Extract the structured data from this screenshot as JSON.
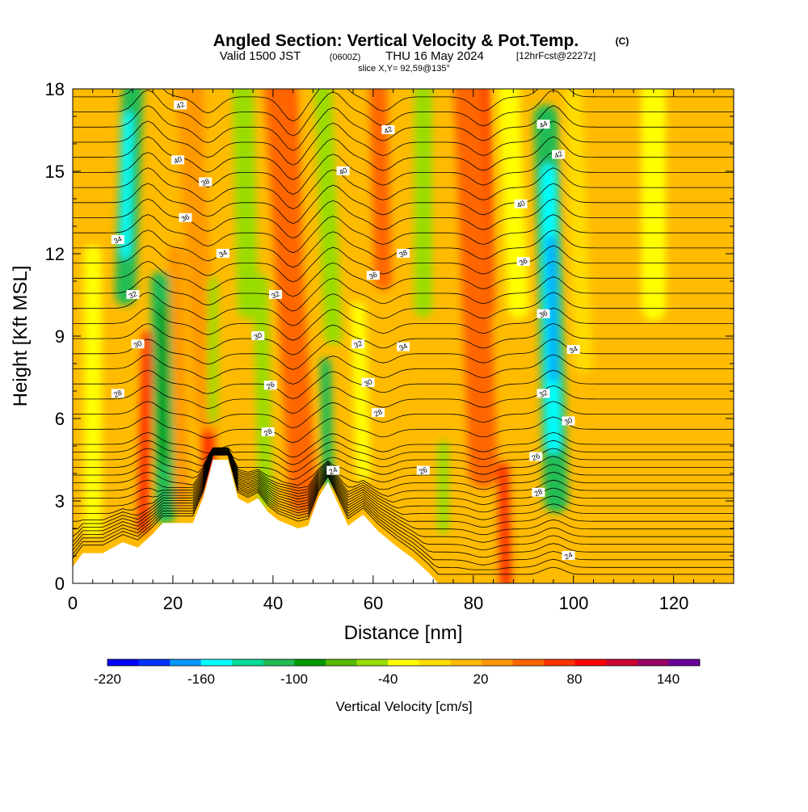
{
  "header": {
    "title": "Angled Section: Vertical Velocity & Pot.Temp.",
    "copyright": "(C)",
    "valid_prefix": "Valid 1500 JST",
    "valid_zulu": "(0600Z)",
    "valid_date": "THU 16 May 2024",
    "forecast": "[12hrFcst@2227z]",
    "slice": "slice X,Y= 92,59@135°"
  },
  "axes": {
    "xlabel": "Distance [nm]",
    "ylabel": "Height [Kft MSL]",
    "xlim": [
      0,
      132
    ],
    "ylim": [
      0,
      18
    ],
    "xticks": [
      "0",
      "20",
      "40",
      "60",
      "80",
      "100",
      "120"
    ],
    "yticks": [
      "0",
      "3",
      "6",
      "9",
      "12",
      "15",
      "18"
    ]
  },
  "colorbar": {
    "label": "Vertical Velocity [cm/s]",
    "ticks": [
      "-220",
      "-160",
      "-100",
      "-40",
      "20",
      "80",
      "140"
    ],
    "colors": [
      "#0000ff",
      "#0033ff",
      "#0099ff",
      "#00ffff",
      "#00dd99",
      "#22bb55",
      "#009900",
      "#55bb00",
      "#99dd00",
      "#ffff00",
      "#ffdd00",
      "#ffbb00",
      "#ff9900",
      "#ff6600",
      "#ff3300",
      "#ff0000",
      "#cc0033",
      "#990066",
      "#660099"
    ]
  },
  "chart_data": {
    "type": "heatmap",
    "field": "vertical velocity (filled) with potential temperature contours",
    "x": "distance nm",
    "y": "height kft MSL",
    "updrafts_nm": [
      15,
      27,
      44,
      62,
      82,
      88
    ],
    "downdrafts_nm": [
      11,
      18,
      38,
      51,
      96
    ],
    "terrain": [
      [
        0,
        0.6
      ],
      [
        2,
        1.1
      ],
      [
        6,
        1.1
      ],
      [
        8,
        1.3
      ],
      [
        10,
        1.5
      ],
      [
        13,
        1.3
      ],
      [
        16,
        1.8
      ],
      [
        18,
        2.2
      ],
      [
        24,
        2.2
      ],
      [
        26,
        3.1
      ],
      [
        28,
        4.5
      ],
      [
        31,
        4.5
      ],
      [
        33,
        3.1
      ],
      [
        35,
        2.9
      ],
      [
        37,
        3.1
      ],
      [
        39,
        2.6
      ],
      [
        41,
        2.3
      ],
      [
        45,
        2.0
      ],
      [
        47,
        2.1
      ],
      [
        49,
        3.1
      ],
      [
        51,
        3.7
      ],
      [
        53,
        2.9
      ],
      [
        55,
        2.1
      ],
      [
        58,
        2.5
      ],
      [
        61,
        1.9
      ],
      [
        65,
        1.3
      ],
      [
        68,
        0.9
      ],
      [
        71,
        0.4
      ],
      [
        73,
        0
      ],
      [
        132,
        0
      ]
    ],
    "contour_labels": [
      {
        "v": "42",
        "x": 21.5,
        "y": 17.4
      },
      {
        "v": "42",
        "x": 63,
        "y": 16.5
      },
      {
        "v": "44",
        "x": 94,
        "y": 16.7
      },
      {
        "v": "40",
        "x": 21,
        "y": 15.4
      },
      {
        "v": "40",
        "x": 54,
        "y": 15.0
      },
      {
        "v": "42",
        "x": 97,
        "y": 15.6
      },
      {
        "v": "38",
        "x": 26.5,
        "y": 14.6
      },
      {
        "v": "40",
        "x": 89.5,
        "y": 13.8
      },
      {
        "v": "36",
        "x": 22.5,
        "y": 13.3
      },
      {
        "v": "34",
        "x": 9,
        "y": 12.5
      },
      {
        "v": "34",
        "x": 30,
        "y": 12.0
      },
      {
        "v": "38",
        "x": 66,
        "y": 12.0
      },
      {
        "v": "36",
        "x": 90,
        "y": 11.7
      },
      {
        "v": "36",
        "x": 60,
        "y": 11.2
      },
      {
        "v": "32",
        "x": 12,
        "y": 10.5
      },
      {
        "v": "32",
        "x": 40.5,
        "y": 10.5
      },
      {
        "v": "36",
        "x": 94,
        "y": 9.8
      },
      {
        "v": "30",
        "x": 37,
        "y": 9.0
      },
      {
        "v": "30",
        "x": 13,
        "y": 8.7
      },
      {
        "v": "32",
        "x": 57,
        "y": 8.7
      },
      {
        "v": "34",
        "x": 66,
        "y": 8.6
      },
      {
        "v": "34",
        "x": 100,
        "y": 8.5
      },
      {
        "v": "28",
        "x": 9,
        "y": 6.9
      },
      {
        "v": "26",
        "x": 39.5,
        "y": 7.2
      },
      {
        "v": "30",
        "x": 59,
        "y": 7.3
      },
      {
        "v": "32",
        "x": 94,
        "y": 6.9
      },
      {
        "v": "28",
        "x": 61,
        "y": 6.2
      },
      {
        "v": "30",
        "x": 99,
        "y": 5.9
      },
      {
        "v": "28",
        "x": 39,
        "y": 5.5
      },
      {
        "v": "26",
        "x": 92.5,
        "y": 4.6
      },
      {
        "v": "24",
        "x": 52,
        "y": 4.1
      },
      {
        "v": "26",
        "x": 70,
        "y": 4.1
      },
      {
        "v": "28",
        "x": 93,
        "y": 3.3
      },
      {
        "v": "24",
        "x": 99,
        "y": 1.0
      }
    ]
  }
}
